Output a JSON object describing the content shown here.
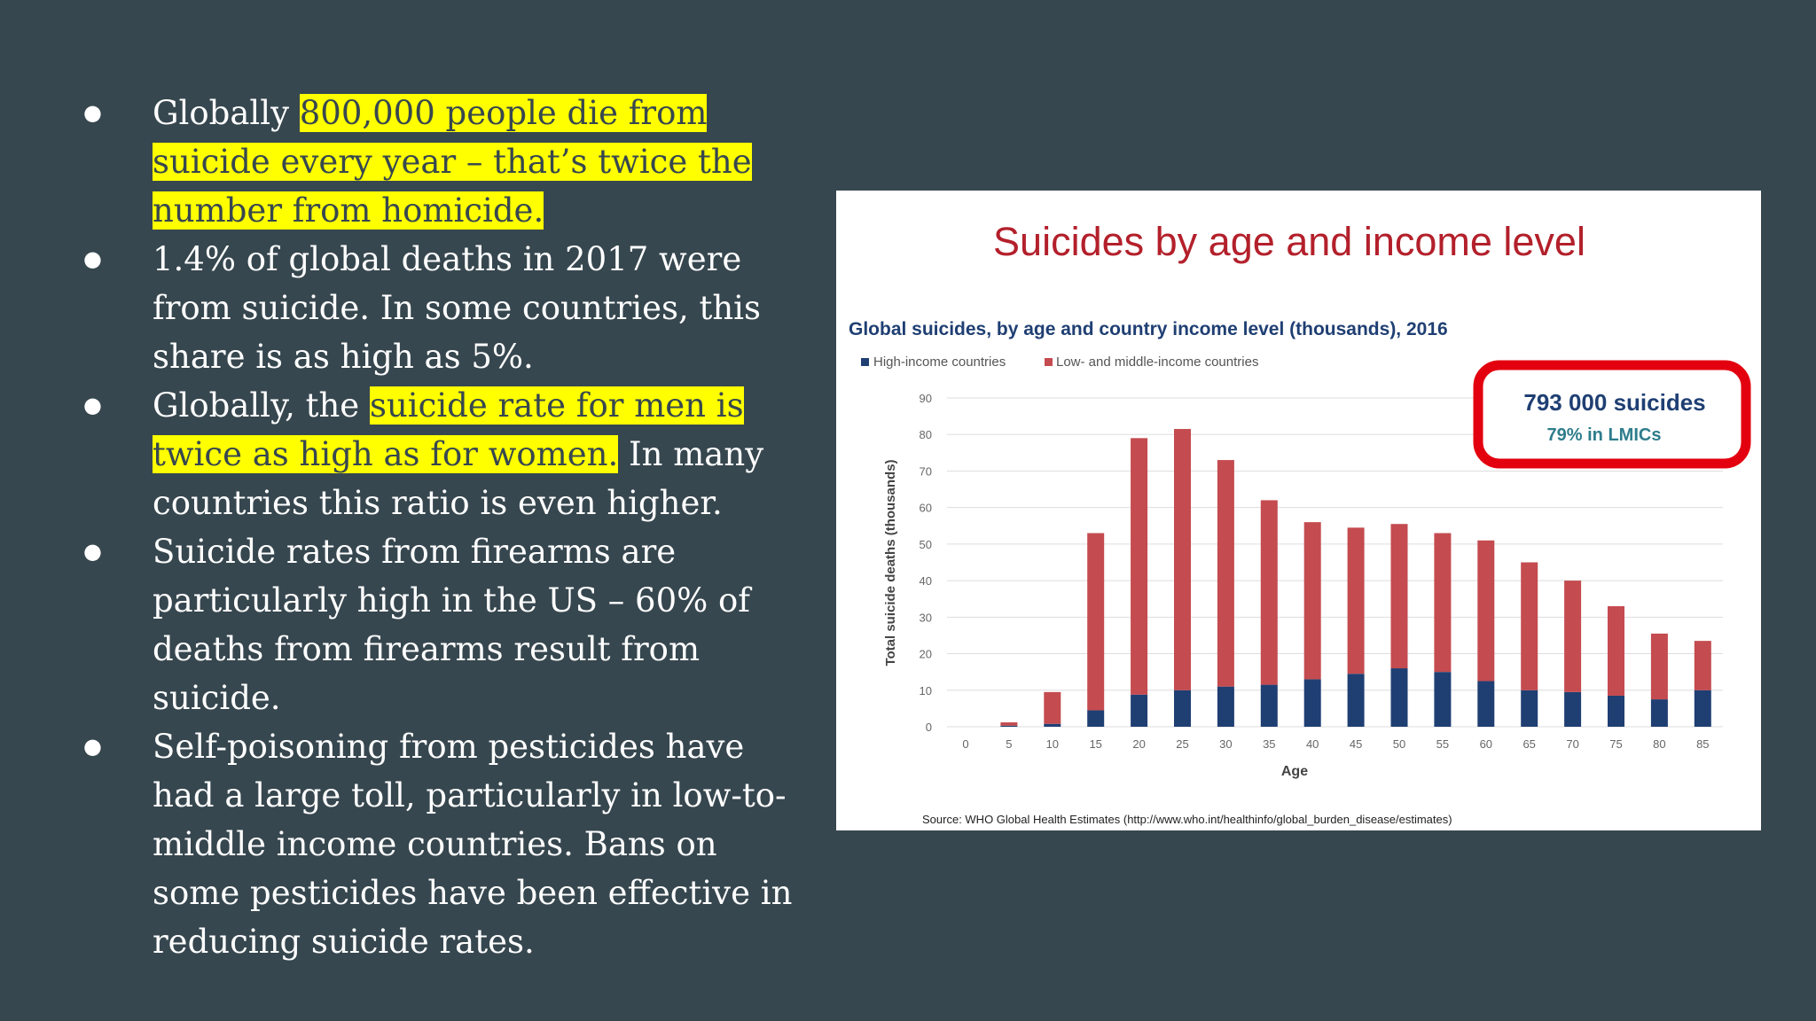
{
  "bullets": [
    {
      "parts": [
        {
          "text": "Globally "
        },
        {
          "text": "800,000 people die from suicide every year – that’s twice the number from homicide.",
          "highlight": true
        }
      ]
    },
    {
      "parts": [
        {
          "text": "1.4% of global deaths in 2017 were from suicide. In some countries, this share is as high as 5%."
        }
      ]
    },
    {
      "parts": [
        {
          "text": "Globally, the "
        },
        {
          "text": "suicide rate for men is twice as high as for women.",
          "highlight": true
        },
        {
          "text": " In many countries this ratio is even higher."
        }
      ]
    },
    {
      "parts": [
        {
          "text": "Suicide rates from firearms are particularly high in the US – 60% of deaths from firearms result from suicide."
        }
      ]
    },
    {
      "parts": [
        {
          "text": "Self-poisoning from pesticides have had a large toll, particularly in low-to-middle income countries. Bans on some pesticides have been effective in reducing suicide rates."
        }
      ]
    }
  ],
  "colors": {
    "background": "#37474f",
    "highlight": "#ffff00",
    "high_income": "#1f3f73",
    "low_middle_income": "#c44b4f",
    "chart_title": "#b3202b",
    "callout_border": "#e3000f",
    "callout_main": "#1f3f73",
    "callout_sub": "#2e7d8c"
  },
  "chart_data": {
    "type": "bar",
    "stacked": true,
    "heading": "Suicides by age and income level",
    "title": "Global suicides, by age and country income level (thousands), 2016",
    "xlabel": "Age",
    "ylabel": "Total suicide deaths (thousands)",
    "ylim": [
      0,
      90
    ],
    "yticks": [
      0,
      10,
      20,
      30,
      40,
      50,
      60,
      70,
      80,
      90
    ],
    "grid": true,
    "legend_position": "top-left",
    "categories": [
      "0",
      "5",
      "10",
      "15",
      "20",
      "25",
      "30",
      "35",
      "40",
      "45",
      "50",
      "55",
      "60",
      "65",
      "70",
      "75",
      "80",
      "85"
    ],
    "series": [
      {
        "name": "High-income countries",
        "values": [
          0,
          0.3,
          0.8,
          4.5,
          8.8,
          10,
          11,
          11.5,
          13,
          14.5,
          16,
          15,
          12.5,
          10,
          9.5,
          8.5,
          7.5,
          10
        ]
      },
      {
        "name": "Low- and middle-income countries",
        "values": [
          0,
          0.9,
          8.7,
          48.5,
          70.2,
          71.5,
          62,
          50.5,
          43,
          40,
          39.5,
          38,
          38.5,
          35,
          30.5,
          24.5,
          18,
          13.5
        ]
      }
    ],
    "callout": {
      "main": "793 000 suicides",
      "sub": "79% in LMICs"
    },
    "source": "Source: WHO Global Health Estimates (http://www.who.int/healthinfo/global_burden_disease/estimates)"
  }
}
